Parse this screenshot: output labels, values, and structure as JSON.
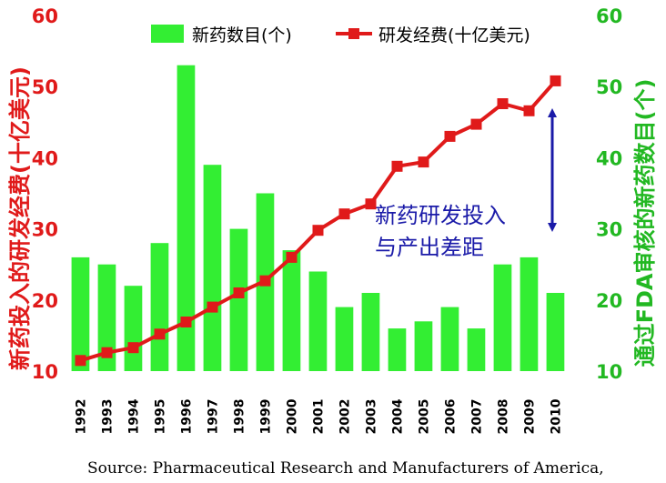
{
  "chart_data": {
    "type": "bar",
    "categories": [
      "1992",
      "1993",
      "1994",
      "1995",
      "1996",
      "1997",
      "1998",
      "1999",
      "2000",
      "2001",
      "2002",
      "2003",
      "2004",
      "2005",
      "2006",
      "2007",
      "2008",
      "2009",
      "2010"
    ],
    "series": [
      {
        "name": "新药数目(个)",
        "type": "bar",
        "axis": "right",
        "color": "#33ee33",
        "values": [
          26,
          25,
          22,
          28,
          53,
          39,
          30,
          35,
          27,
          24,
          19,
          21,
          16,
          17,
          19,
          16,
          25,
          26,
          21
        ]
      },
      {
        "name": "研发经费(十亿美元)",
        "type": "line",
        "axis": "left",
        "color": "#e01a1a",
        "values": [
          11.5,
          12.6,
          13.3,
          15.2,
          16.9,
          19.0,
          21.0,
          22.7,
          26.0,
          29.8,
          32.1,
          33.5,
          38.8,
          39.4,
          43.0,
          44.7,
          47.6,
          46.6,
          50.8
        ]
      }
    ],
    "ylabel_left": "新药投入的研发经费(十亿美元)",
    "ylabel_right": "通过FDA审核的新药数目(个)",
    "ylim_left": [
      10,
      60
    ],
    "ylim_right": [
      10,
      60
    ],
    "yticks_left": [
      "10",
      "20",
      "30",
      "40",
      "50",
      "60"
    ],
    "yticks_right": [
      "10",
      "20",
      "30",
      "40",
      "50",
      "60"
    ],
    "legend_position": "top-right",
    "annotation": {
      "lines": [
        "新药研发投入",
        "与产出差距"
      ],
      "arrow": "double-headed vertical arrow between the line and the bar in 2010"
    },
    "source": "Source: Pharmaceutical Research and Manufacturers of America,",
    "grid": false
  }
}
